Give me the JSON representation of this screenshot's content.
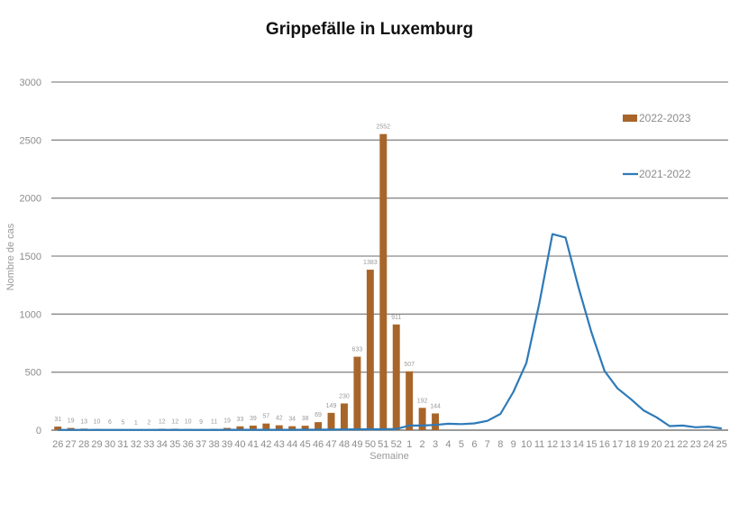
{
  "chart_data": {
    "type": "bar+line",
    "title": "Grippefälle in Luxemburg",
    "xlabel": "Semaine",
    "ylabel": "Nombre de cas",
    "ylim": [
      0,
      3000
    ],
    "yticks": [
      0,
      500,
      1000,
      1500,
      2000,
      2500,
      3000
    ],
    "grid": true,
    "legend_position": "upper right",
    "categories": [
      "26",
      "27",
      "28",
      "29",
      "30",
      "31",
      "32",
      "33",
      "34",
      "35",
      "36",
      "37",
      "38",
      "39",
      "40",
      "41",
      "42",
      "43",
      "44",
      "45",
      "46",
      "47",
      "48",
      "49",
      "50",
      "51",
      "52",
      "1",
      "2",
      "3",
      "4",
      "5",
      "6",
      "7",
      "8",
      "9",
      "10",
      "11",
      "12",
      "13",
      "14",
      "15",
      "16",
      "17",
      "18",
      "19",
      "20",
      "21",
      "22",
      "23",
      "24",
      "25"
    ],
    "series": [
      {
        "name": "2022-2023",
        "type": "bar",
        "color": "#a8652a",
        "values": [
          31,
          19,
          13,
          10,
          6,
          5,
          1,
          2,
          12,
          12,
          10,
          9,
          11,
          19,
          33,
          39,
          57,
          42,
          34,
          38,
          69,
          149,
          230,
          633,
          1383,
          2552,
          911,
          507,
          192,
          144,
          null,
          null,
          null,
          null,
          null,
          null,
          null,
          null,
          null,
          null,
          null,
          null,
          null,
          null,
          null,
          null,
          null,
          null,
          null,
          null,
          null,
          null
        ]
      },
      {
        "name": "2021-2022",
        "type": "line",
        "color": "#2e7ab8",
        "values": [
          2,
          2,
          2,
          2,
          2,
          2,
          2,
          2,
          2,
          2,
          2,
          2,
          2,
          3,
          3,
          3,
          3,
          3,
          3,
          4,
          4,
          5,
          6,
          7,
          8,
          8,
          10,
          40,
          40,
          45,
          55,
          52,
          58,
          80,
          140,
          330,
          580,
          1100,
          1690,
          1660,
          1230,
          840,
          510,
          360,
          270,
          170,
          110,
          35,
          40,
          25,
          30,
          15
        ]
      }
    ]
  },
  "legend": {
    "items": [
      {
        "label": "2022-2023",
        "kind": "bar",
        "color": "#a8652a"
      },
      {
        "label": "2021-2022",
        "kind": "line",
        "color": "#2e7ab8"
      }
    ]
  }
}
